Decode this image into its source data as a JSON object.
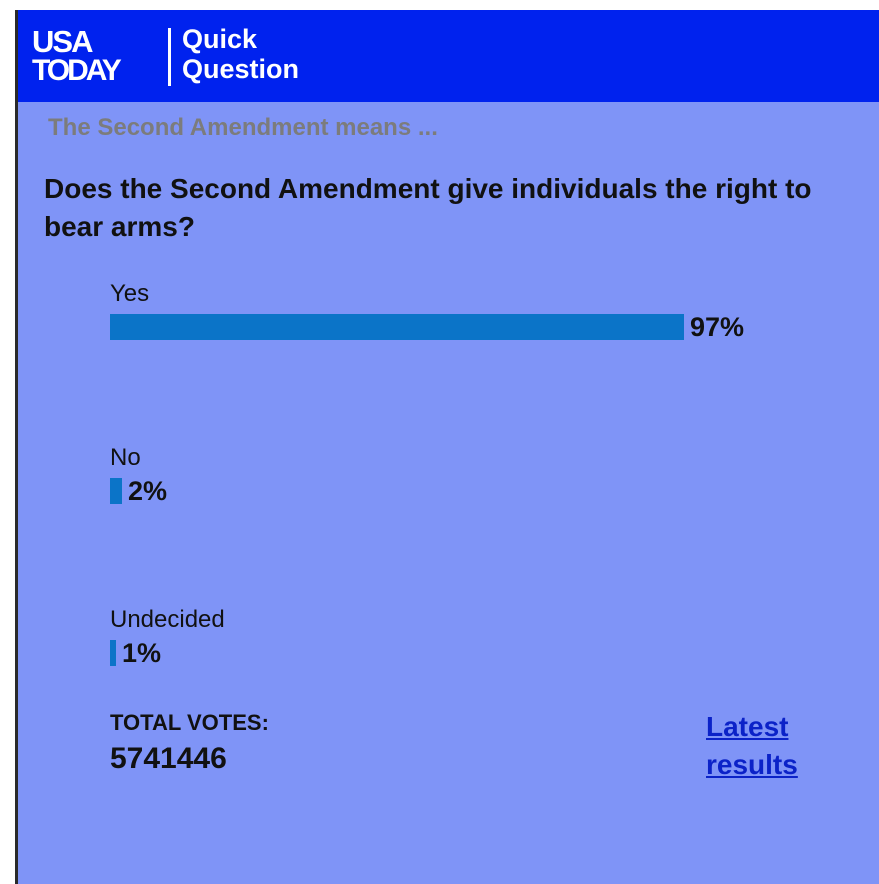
{
  "header": {
    "logo_line1": "USA",
    "logo_line2": "TODAY",
    "title": "Quick Question"
  },
  "poll": {
    "topic": "The Second Amendment means ...",
    "question": "Does the Second Amendment give individuals the right to bear arms?",
    "options": [
      {
        "label": "Yes",
        "percent": 97,
        "percent_text": "97%"
      },
      {
        "label": "No",
        "percent": 2,
        "percent_text": "2%"
      },
      {
        "label": "Undecided",
        "percent": 1,
        "percent_text": "1%"
      }
    ],
    "total_votes_label": "TOTAL VOTES:",
    "total_votes": "5741446",
    "link_text": "Latest results"
  },
  "colors": {
    "header_bg": "#0022ee",
    "panel_bg": "#7f94f7",
    "bar": "#0b74c8",
    "link": "#0b22c8"
  }
}
